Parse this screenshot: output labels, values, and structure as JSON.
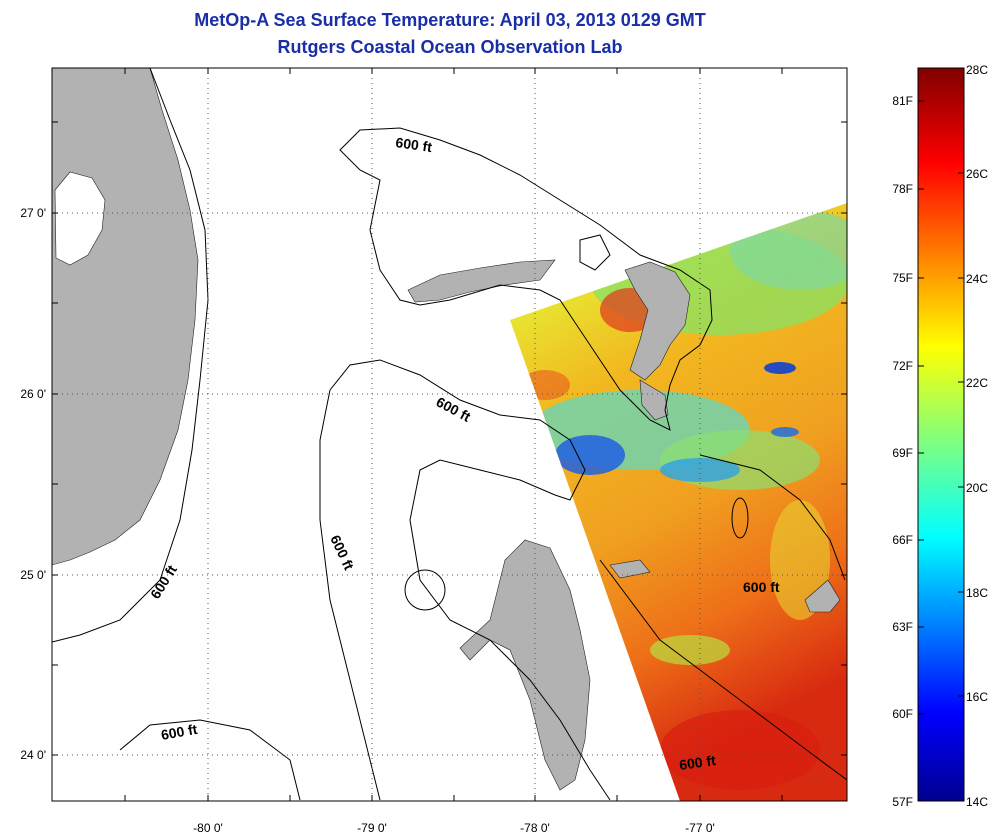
{
  "header": {
    "title": "MetOp-A Sea Surface Temperature:  April 03, 2013 0129 GMT",
    "subtitle": "Rutgers Coastal Ocean Observation Lab"
  },
  "map": {
    "lon_labels": [
      "-80 0'",
      "-79 0'",
      "-78 0'",
      "-77 0'"
    ],
    "lat_labels": [
      "27 0'",
      "26 0'",
      "25 0'",
      "24 0'"
    ],
    "contour_labels": [
      "600 ft",
      "600 ft",
      "600 ft",
      "600 ft",
      "600 ft",
      "600 ft"
    ],
    "land_color": "#b2b2b2",
    "grid": true
  },
  "colorbar": {
    "celsius": [
      "28C",
      "26C",
      "24C",
      "22C",
      "20C",
      "18C",
      "16C",
      "14C"
    ],
    "fahrenheit": [
      "81F",
      "78F",
      "75F",
      "72F",
      "69F",
      "66F",
      "63F",
      "60F",
      "57F"
    ],
    "range_c": [
      14,
      28
    ],
    "colormap": "jet"
  }
}
